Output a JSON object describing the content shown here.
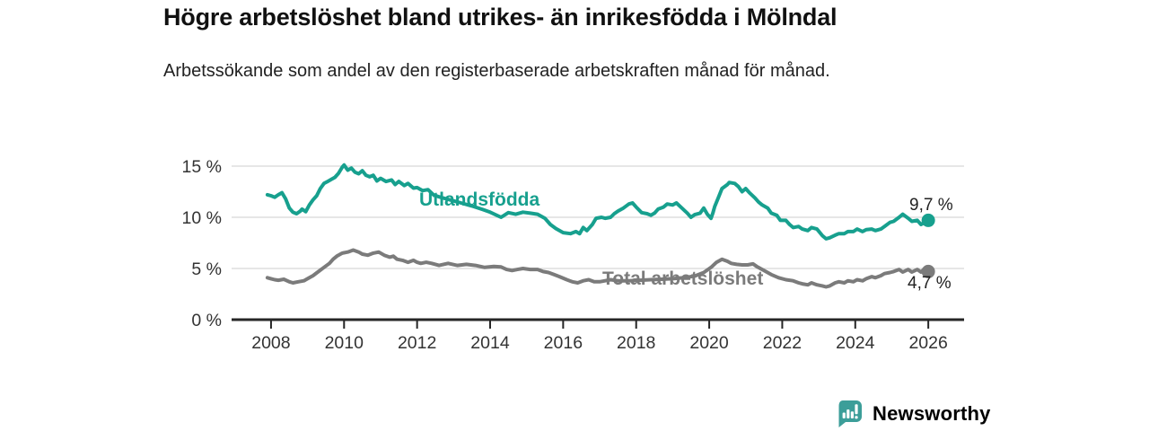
{
  "header": {
    "title": "Högre arbetslöshet bland utrikes- än inrikesfödda i Mölndal",
    "subtitle": "Arbetssökande som andel av den registerbaserade arbetskraften månad för månad."
  },
  "colors": {
    "accent_teal": "#17A08E",
    "line_gray": "#7B7B7B",
    "grid": "#D6D6D6",
    "axis": "#262626",
    "tick_text": "#333333",
    "brand_teal": "#3C9E99"
  },
  "chart_data": {
    "type": "line",
    "title": "Högre arbetslöshet bland utrikes- än inrikesfödda i Mölndal",
    "subtitle": "Arbetssökande som andel av den registerbaserade arbetskraften månad för månad.",
    "unit": "%",
    "grid": "horizontal",
    "legend_position": "inline-labels",
    "xlim": [
      2006.92,
      2026.98
    ],
    "ylim": [
      0,
      16.4
    ],
    "x_ticks": [
      {
        "value": 2008,
        "label": "2008"
      },
      {
        "value": 2010,
        "label": "2010"
      },
      {
        "value": 2012,
        "label": "2012"
      },
      {
        "value": 2014,
        "label": "2014"
      },
      {
        "value": 2016,
        "label": "2016"
      },
      {
        "value": 2018,
        "label": "2018"
      },
      {
        "value": 2020,
        "label": "2020"
      },
      {
        "value": 2022,
        "label": "2022"
      },
      {
        "value": 2024,
        "label": "2024"
      },
      {
        "value": 2026,
        "label": "2026"
      }
    ],
    "y_ticks": [
      {
        "value": 0,
        "label": "0 %"
      },
      {
        "value": 5,
        "label": "5 %"
      },
      {
        "value": 10,
        "label": "10 %"
      },
      {
        "value": 15,
        "label": "15 %"
      }
    ],
    "series": [
      {
        "name": "Utlandsfödda",
        "color": "#17A08E",
        "end_value": 9.7,
        "end_value_label": "9,7 %",
        "points": [
          [
            2007.9,
            12.2
          ],
          [
            2008.0,
            12.1
          ],
          [
            2008.1,
            11.95
          ],
          [
            2008.2,
            12.2
          ],
          [
            2008.3,
            12.4
          ],
          [
            2008.4,
            11.8
          ],
          [
            2008.5,
            10.9
          ],
          [
            2008.6,
            10.5
          ],
          [
            2008.7,
            10.35
          ],
          [
            2008.8,
            10.6
          ],
          [
            2008.85,
            10.8
          ],
          [
            2008.95,
            10.55
          ],
          [
            2009.05,
            11.2
          ],
          [
            2009.15,
            11.7
          ],
          [
            2009.25,
            12.1
          ],
          [
            2009.35,
            12.8
          ],
          [
            2009.45,
            13.3
          ],
          [
            2009.55,
            13.5
          ],
          [
            2009.65,
            13.7
          ],
          [
            2009.75,
            13.9
          ],
          [
            2009.85,
            14.3
          ],
          [
            2009.95,
            14.9
          ],
          [
            2010.0,
            15.1
          ],
          [
            2010.1,
            14.6
          ],
          [
            2010.2,
            14.8
          ],
          [
            2010.3,
            14.4
          ],
          [
            2010.4,
            14.25
          ],
          [
            2010.5,
            14.55
          ],
          [
            2010.6,
            14.1
          ],
          [
            2010.7,
            13.95
          ],
          [
            2010.8,
            14.1
          ],
          [
            2010.9,
            13.55
          ],
          [
            2011.0,
            13.8
          ],
          [
            2011.15,
            13.5
          ],
          [
            2011.3,
            13.65
          ],
          [
            2011.4,
            13.2
          ],
          [
            2011.5,
            13.5
          ],
          [
            2011.65,
            13.1
          ],
          [
            2011.75,
            13.3
          ],
          [
            2011.9,
            12.85
          ],
          [
            2012.0,
            12.9
          ],
          [
            2012.15,
            12.6
          ],
          [
            2012.3,
            12.7
          ],
          [
            2012.45,
            12.2
          ],
          [
            2012.6,
            12.0
          ],
          [
            2012.8,
            11.8
          ],
          [
            2013.0,
            11.6
          ],
          [
            2013.2,
            11.4
          ],
          [
            2013.5,
            11.1
          ],
          [
            2013.8,
            10.75
          ],
          [
            2014.0,
            10.5
          ],
          [
            2014.3,
            10.0
          ],
          [
            2014.5,
            10.45
          ],
          [
            2014.7,
            10.3
          ],
          [
            2014.9,
            10.5
          ],
          [
            2015.1,
            10.4
          ],
          [
            2015.3,
            10.3
          ],
          [
            2015.5,
            9.9
          ],
          [
            2015.65,
            9.3
          ],
          [
            2015.8,
            8.9
          ],
          [
            2016.0,
            8.5
          ],
          [
            2016.2,
            8.4
          ],
          [
            2016.35,
            8.6
          ],
          [
            2016.45,
            8.4
          ],
          [
            2016.55,
            9.0
          ],
          [
            2016.65,
            8.7
          ],
          [
            2016.8,
            9.3
          ],
          [
            2016.9,
            9.9
          ],
          [
            2017.05,
            10.0
          ],
          [
            2017.15,
            9.9
          ],
          [
            2017.3,
            10.0
          ],
          [
            2017.4,
            10.35
          ],
          [
            2017.5,
            10.6
          ],
          [
            2017.65,
            10.9
          ],
          [
            2017.8,
            11.3
          ],
          [
            2017.9,
            11.4
          ],
          [
            2018.0,
            11.0
          ],
          [
            2018.15,
            10.45
          ],
          [
            2018.3,
            10.35
          ],
          [
            2018.4,
            10.2
          ],
          [
            2018.5,
            10.4
          ],
          [
            2018.6,
            10.8
          ],
          [
            2018.75,
            11.0
          ],
          [
            2018.85,
            11.3
          ],
          [
            2019.0,
            11.2
          ],
          [
            2019.1,
            11.4
          ],
          [
            2019.25,
            10.9
          ],
          [
            2019.4,
            10.4
          ],
          [
            2019.5,
            10.0
          ],
          [
            2019.6,
            10.25
          ],
          [
            2019.75,
            10.4
          ],
          [
            2019.85,
            10.9
          ],
          [
            2019.95,
            10.3
          ],
          [
            2020.05,
            9.9
          ],
          [
            2020.1,
            10.4
          ],
          [
            2020.15,
            11.05
          ],
          [
            2020.25,
            11.9
          ],
          [
            2020.35,
            12.8
          ],
          [
            2020.5,
            13.2
          ],
          [
            2020.55,
            13.4
          ],
          [
            2020.7,
            13.3
          ],
          [
            2020.8,
            13.0
          ],
          [
            2020.9,
            12.5
          ],
          [
            2021.0,
            12.8
          ],
          [
            2021.1,
            12.4
          ],
          [
            2021.25,
            11.9
          ],
          [
            2021.35,
            11.5
          ],
          [
            2021.45,
            11.2
          ],
          [
            2021.6,
            10.9
          ],
          [
            2021.7,
            10.4
          ],
          [
            2021.85,
            10.2
          ],
          [
            2021.95,
            9.7
          ],
          [
            2022.1,
            9.7
          ],
          [
            2022.2,
            9.3
          ],
          [
            2022.3,
            9.0
          ],
          [
            2022.45,
            9.1
          ],
          [
            2022.55,
            8.85
          ],
          [
            2022.7,
            8.7
          ],
          [
            2022.8,
            9.0
          ],
          [
            2022.95,
            8.85
          ],
          [
            2023.1,
            8.2
          ],
          [
            2023.2,
            7.9
          ],
          [
            2023.3,
            8.0
          ],
          [
            2023.45,
            8.25
          ],
          [
            2023.55,
            8.4
          ],
          [
            2023.7,
            8.4
          ],
          [
            2023.8,
            8.6
          ],
          [
            2023.95,
            8.6
          ],
          [
            2024.05,
            8.85
          ],
          [
            2024.2,
            8.6
          ],
          [
            2024.3,
            8.8
          ],
          [
            2024.45,
            8.85
          ],
          [
            2024.55,
            8.7
          ],
          [
            2024.7,
            8.85
          ],
          [
            2024.8,
            9.1
          ],
          [
            2024.95,
            9.5
          ],
          [
            2025.05,
            9.6
          ],
          [
            2025.2,
            10.0
          ],
          [
            2025.3,
            10.3
          ],
          [
            2025.45,
            9.9
          ],
          [
            2025.55,
            9.6
          ],
          [
            2025.7,
            9.7
          ],
          [
            2025.8,
            9.3
          ],
          [
            2025.9,
            9.5
          ],
          [
            2026.0,
            9.7
          ]
        ]
      },
      {
        "name": "Total arbetslöshet",
        "color": "#7B7B7B",
        "end_value": 4.7,
        "end_value_label": "4,7 %",
        "points": [
          [
            2007.9,
            4.1
          ],
          [
            2008.0,
            4.0
          ],
          [
            2008.1,
            3.9
          ],
          [
            2008.2,
            3.85
          ],
          [
            2008.35,
            3.95
          ],
          [
            2008.5,
            3.7
          ],
          [
            2008.6,
            3.6
          ],
          [
            2008.75,
            3.7
          ],
          [
            2008.9,
            3.8
          ],
          [
            2009.0,
            4.0
          ],
          [
            2009.15,
            4.3
          ],
          [
            2009.3,
            4.7
          ],
          [
            2009.45,
            5.1
          ],
          [
            2009.6,
            5.5
          ],
          [
            2009.7,
            5.9
          ],
          [
            2009.8,
            6.2
          ],
          [
            2009.95,
            6.5
          ],
          [
            2010.1,
            6.6
          ],
          [
            2010.25,
            6.8
          ],
          [
            2010.4,
            6.6
          ],
          [
            2010.5,
            6.4
          ],
          [
            2010.65,
            6.3
          ],
          [
            2010.8,
            6.5
          ],
          [
            2010.95,
            6.6
          ],
          [
            2011.1,
            6.3
          ],
          [
            2011.25,
            6.1
          ],
          [
            2011.35,
            6.2
          ],
          [
            2011.45,
            5.9
          ],
          [
            2011.6,
            5.8
          ],
          [
            2011.75,
            5.6
          ],
          [
            2011.9,
            5.8
          ],
          [
            2012.0,
            5.6
          ],
          [
            2012.1,
            5.5
          ],
          [
            2012.25,
            5.6
          ],
          [
            2012.4,
            5.5
          ],
          [
            2012.6,
            5.3
          ],
          [
            2012.85,
            5.5
          ],
          [
            2013.1,
            5.3
          ],
          [
            2013.35,
            5.4
          ],
          [
            2013.6,
            5.3
          ],
          [
            2013.85,
            5.1
          ],
          [
            2014.1,
            5.2
          ],
          [
            2014.3,
            5.15
          ],
          [
            2014.45,
            4.9
          ],
          [
            2014.6,
            4.8
          ],
          [
            2014.75,
            4.9
          ],
          [
            2014.9,
            5.0
          ],
          [
            2015.1,
            4.9
          ],
          [
            2015.3,
            4.9
          ],
          [
            2015.45,
            4.7
          ],
          [
            2015.6,
            4.6
          ],
          [
            2015.75,
            4.4
          ],
          [
            2015.9,
            4.2
          ],
          [
            2016.1,
            3.9
          ],
          [
            2016.25,
            3.7
          ],
          [
            2016.4,
            3.6
          ],
          [
            2016.55,
            3.8
          ],
          [
            2016.7,
            3.9
          ],
          [
            2016.85,
            3.7
          ],
          [
            2017.0,
            3.7
          ],
          [
            2017.15,
            3.8
          ],
          [
            2017.3,
            3.9
          ],
          [
            2017.5,
            3.8
          ],
          [
            2017.8,
            3.8
          ],
          [
            2018.1,
            3.85
          ],
          [
            2018.4,
            3.9
          ],
          [
            2018.7,
            3.95
          ],
          [
            2019.0,
            4.0
          ],
          [
            2019.3,
            4.1
          ],
          [
            2019.6,
            4.25
          ],
          [
            2019.85,
            4.6
          ],
          [
            2020.05,
            5.1
          ],
          [
            2020.2,
            5.6
          ],
          [
            2020.35,
            5.9
          ],
          [
            2020.5,
            5.7
          ],
          [
            2020.6,
            5.5
          ],
          [
            2020.75,
            5.4
          ],
          [
            2020.9,
            5.35
          ],
          [
            2021.05,
            5.35
          ],
          [
            2021.2,
            5.45
          ],
          [
            2021.3,
            5.2
          ],
          [
            2021.5,
            4.8
          ],
          [
            2021.7,
            4.4
          ],
          [
            2021.9,
            4.1
          ],
          [
            2022.1,
            3.9
          ],
          [
            2022.3,
            3.8
          ],
          [
            2022.45,
            3.6
          ],
          [
            2022.55,
            3.5
          ],
          [
            2022.7,
            3.4
          ],
          [
            2022.8,
            3.6
          ],
          [
            2022.95,
            3.4
          ],
          [
            2023.1,
            3.3
          ],
          [
            2023.2,
            3.2
          ],
          [
            2023.3,
            3.3
          ],
          [
            2023.45,
            3.6
          ],
          [
            2023.55,
            3.7
          ],
          [
            2023.7,
            3.6
          ],
          [
            2023.8,
            3.8
          ],
          [
            2023.95,
            3.7
          ],
          [
            2024.05,
            3.9
          ],
          [
            2024.2,
            3.8
          ],
          [
            2024.3,
            4.0
          ],
          [
            2024.45,
            4.2
          ],
          [
            2024.55,
            4.1
          ],
          [
            2024.7,
            4.3
          ],
          [
            2024.8,
            4.5
          ],
          [
            2024.95,
            4.6
          ],
          [
            2025.05,
            4.7
          ],
          [
            2025.2,
            4.9
          ],
          [
            2025.3,
            4.65
          ],
          [
            2025.45,
            4.9
          ],
          [
            2025.55,
            4.65
          ],
          [
            2025.7,
            4.9
          ],
          [
            2025.8,
            4.65
          ],
          [
            2025.9,
            5.0
          ],
          [
            2026.0,
            4.7
          ]
        ]
      }
    ]
  },
  "footer": {
    "brand": "Newsworthy",
    "logo_icon": "bar-chart-speech-bubble-icon"
  }
}
